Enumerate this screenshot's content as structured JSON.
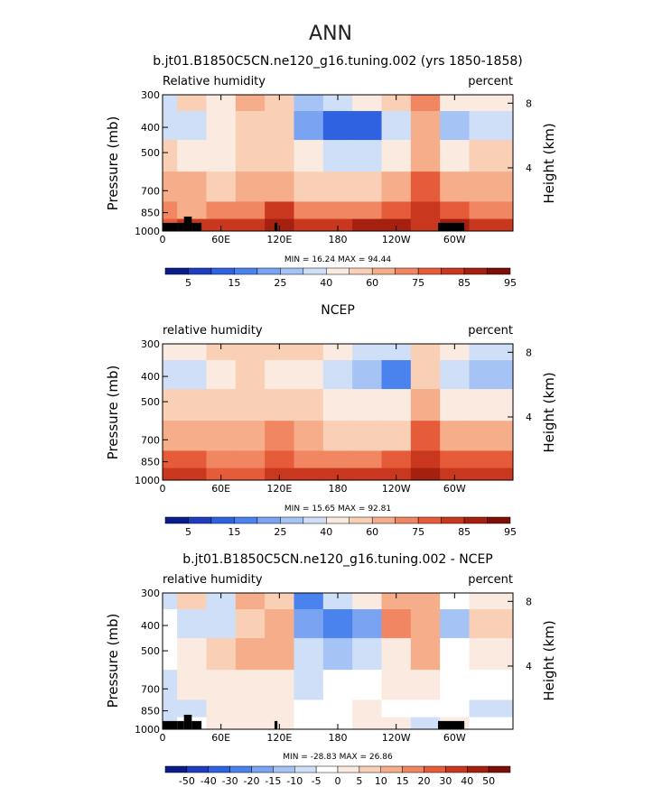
{
  "page_title": "ANN",
  "colors": {
    "abs_palette": [
      "#0b1d8a",
      "#1d3fbf",
      "#2e62e0",
      "#4a82ee",
      "#7aa3f2",
      "#a6c3f5",
      "#cfdff7",
      "#fbeadf",
      "#f9cfb5",
      "#f6ad8a",
      "#f18663",
      "#e65b3a",
      "#c9371e",
      "#a6200f",
      "#7e0f07"
    ],
    "diff_palette": [
      "#0b1d8a",
      "#1d3fbf",
      "#2e62e0",
      "#4a82ee",
      "#7aa3f2",
      "#a6c3f5",
      "#cfdff7",
      "#ffffff",
      "#fbeadf",
      "#f9cfb5",
      "#f6ad8a",
      "#f18663",
      "#e65b3a",
      "#c9371e",
      "#a6200f",
      "#7e0f07"
    ]
  },
  "chart_data": [
    {
      "type": "heatmap",
      "id": "model",
      "title": "b.jt01.B1850C5CN.ne120_g16.tuning.002 (yrs 1850-1858)",
      "left_label": "Relative humidity",
      "right_label": "percent",
      "ylabel": "Pressure (mb)",
      "ylabel_right": "Height (km)",
      "x_ticks": [
        {
          "v": 0,
          "l": "0"
        },
        {
          "v": 60,
          "l": "60E"
        },
        {
          "v": 120,
          "l": "120E"
        },
        {
          "v": 180,
          "l": "180"
        },
        {
          "v": 240,
          "l": "120W"
        },
        {
          "v": 300,
          "l": "60W"
        }
      ],
      "y_ticks": [
        {
          "v": 300,
          "l": "300"
        },
        {
          "v": 400,
          "l": "400"
        },
        {
          "v": 500,
          "l": "500"
        },
        {
          "v": 700,
          "l": "700"
        },
        {
          "v": 850,
          "l": "850"
        },
        {
          "v": 1000,
          "l": "1000"
        }
      ],
      "height_ticks": [
        {
          "v": 4,
          "l": "4"
        },
        {
          "v": 8,
          "l": "8"
        }
      ],
      "xlim": [
        0,
        360
      ],
      "ylim": [
        300,
        1000
      ],
      "stats": "MIN =   16.24   MAX =   94.44",
      "min": 16.24,
      "max": 94.44,
      "levels": [
        5,
        10,
        15,
        20,
        25,
        30,
        40,
        50,
        60,
        70,
        75,
        80,
        85,
        90,
        95
      ],
      "colorbar_labels": [
        "5",
        "15",
        "25",
        "40",
        "60",
        "75",
        "85",
        "95"
      ],
      "colorbar_label_index": [
        0,
        2,
        4,
        6,
        8,
        10,
        12,
        14
      ],
      "lon_samples": [
        0,
        30,
        60,
        90,
        120,
        150,
        180,
        210,
        240,
        270,
        300,
        330
      ],
      "p_samples": [
        300,
        400,
        500,
        700,
        850,
        950
      ],
      "values": [
        [
          40,
          55,
          50,
          70,
          60,
          30,
          40,
          45,
          55,
          75,
          45,
          45
        ],
        [
          40,
          35,
          45,
          60,
          55,
          25,
          15,
          15,
          40,
          70,
          30,
          40
        ],
        [
          55,
          50,
          45,
          60,
          55,
          45,
          40,
          40,
          50,
          70,
          50,
          55
        ],
        [
          65,
          65,
          55,
          65,
          70,
          60,
          60,
          60,
          65,
          80,
          65,
          65
        ],
        [
          75,
          70,
          75,
          75,
          85,
          75,
          75,
          75,
          80,
          85,
          80,
          75
        ],
        [
          80,
          85,
          85,
          85,
          90,
          85,
          85,
          90,
          90,
          85,
          90,
          85
        ]
      ],
      "topo_mask": [
        [
          0,
          15
        ],
        [
          15,
          22
        ],
        [
          22,
          30
        ],
        [
          30,
          40
        ],
        [
          115,
          118
        ],
        [
          283,
          310
        ]
      ]
    },
    {
      "type": "heatmap",
      "id": "ncep",
      "title": "NCEP",
      "left_label": "relative humidity",
      "right_label": "percent",
      "ylabel": "Pressure (mb)",
      "ylabel_right": "Height (km)",
      "x_ticks": [
        {
          "v": 0,
          "l": "0"
        },
        {
          "v": 60,
          "l": "60E"
        },
        {
          "v": 120,
          "l": "120E"
        },
        {
          "v": 180,
          "l": "180"
        },
        {
          "v": 240,
          "l": "120W"
        },
        {
          "v": 300,
          "l": "60W"
        }
      ],
      "y_ticks": [
        {
          "v": 300,
          "l": "300"
        },
        {
          "v": 400,
          "l": "400"
        },
        {
          "v": 500,
          "l": "500"
        },
        {
          "v": 700,
          "l": "700"
        },
        {
          "v": 850,
          "l": "850"
        },
        {
          "v": 1000,
          "l": "1000"
        }
      ],
      "height_ticks": [
        {
          "v": 4,
          "l": "4"
        },
        {
          "v": 8,
          "l": "8"
        }
      ],
      "xlim": [
        0,
        360
      ],
      "ylim": [
        300,
        1000
      ],
      "stats": "MIN =   15.65   MAX =   92.81",
      "min": 15.65,
      "max": 92.81,
      "levels": [
        5,
        10,
        15,
        20,
        25,
        30,
        40,
        50,
        60,
        70,
        75,
        80,
        85,
        90,
        95
      ],
      "colorbar_labels": [
        "5",
        "15",
        "25",
        "40",
        "60",
        "75",
        "85",
        "95"
      ],
      "colorbar_label_index": [
        0,
        2,
        4,
        6,
        8,
        10,
        12,
        14
      ],
      "lon_samples": [
        0,
        30,
        60,
        90,
        120,
        150,
        180,
        210,
        240,
        270,
        300,
        330
      ],
      "p_samples": [
        300,
        400,
        500,
        700,
        850,
        950
      ],
      "values": [
        [
          50,
          45,
          55,
          55,
          55,
          55,
          45,
          40,
          40,
          60,
          45,
          40
        ],
        [
          40,
          40,
          50,
          55,
          50,
          50,
          40,
          30,
          20,
          55,
          40,
          30
        ],
        [
          55,
          55,
          60,
          60,
          60,
          55,
          50,
          45,
          45,
          65,
          50,
          50
        ],
        [
          70,
          70,
          65,
          70,
          75,
          65,
          60,
          60,
          60,
          80,
          65,
          65
        ],
        [
          80,
          80,
          75,
          75,
          80,
          75,
          75,
          75,
          80,
          85,
          80,
          80
        ],
        [
          85,
          85,
          80,
          80,
          85,
          85,
          85,
          85,
          85,
          90,
          85,
          85
        ]
      ],
      "topo_mask": []
    },
    {
      "type": "heatmap",
      "id": "diff",
      "title": "b.jt01.B1850C5CN.ne120_g16.tuning.002 - NCEP",
      "left_label": "relative humidity",
      "right_label": "percent",
      "ylabel": "Pressure (mb)",
      "ylabel_right": "Height (km)",
      "x_ticks": [
        {
          "v": 0,
          "l": "0"
        },
        {
          "v": 60,
          "l": "60E"
        },
        {
          "v": 120,
          "l": "120E"
        },
        {
          "v": 180,
          "l": "180"
        },
        {
          "v": 240,
          "l": "120W"
        },
        {
          "v": 300,
          "l": "60W"
        }
      ],
      "y_ticks": [
        {
          "v": 300,
          "l": "300"
        },
        {
          "v": 400,
          "l": "400"
        },
        {
          "v": 500,
          "l": "500"
        },
        {
          "v": 700,
          "l": "700"
        },
        {
          "v": 850,
          "l": "850"
        },
        {
          "v": 1000,
          "l": "1000"
        }
      ],
      "height_ticks": [
        {
          "v": 4,
          "l": "4"
        },
        {
          "v": 8,
          "l": "8"
        }
      ],
      "xlim": [
        0,
        360
      ],
      "ylim": [
        300,
        1000
      ],
      "stats": "MIN =  -28.83   MAX =   26.86",
      "min": -28.83,
      "max": 26.86,
      "levels": [
        -50,
        -40,
        -30,
        -20,
        -15,
        -10,
        -5,
        0,
        5,
        10,
        15,
        20,
        30,
        40,
        50
      ],
      "colorbar_labels": [
        "-50",
        "-40",
        "-30",
        "-20",
        "-15",
        "-10",
        "-5",
        "0",
        "5",
        "10",
        "15",
        "20",
        "30",
        "40",
        "50"
      ],
      "colorbar_label_index": [
        0,
        1,
        2,
        3,
        4,
        5,
        6,
        7,
        8,
        9,
        10,
        11,
        12,
        13,
        14
      ],
      "lon_samples": [
        0,
        30,
        60,
        90,
        120,
        150,
        180,
        210,
        240,
        270,
        300,
        330
      ],
      "p_samples": [
        300,
        400,
        500,
        700,
        850,
        950
      ],
      "values": [
        [
          -5,
          10,
          -5,
          15,
          8,
          -20,
          -5,
          5,
          15,
          15,
          0,
          5
        ],
        [
          0,
          -5,
          -5,
          10,
          15,
          -15,
          -25,
          -15,
          20,
          15,
          -10,
          10
        ],
        [
          0,
          5,
          10,
          15,
          15,
          -5,
          -10,
          -5,
          5,
          15,
          0,
          5
        ],
        [
          -5,
          5,
          5,
          5,
          5,
          -5,
          0,
          0,
          5,
          5,
          0,
          0
        ],
        [
          -5,
          -5,
          5,
          5,
          5,
          0,
          0,
          5,
          0,
          0,
          0,
          -5
        ],
        [
          -5,
          0,
          5,
          5,
          5,
          0,
          0,
          5,
          5,
          -5,
          5,
          0
        ]
      ],
      "topo_mask": [
        [
          0,
          15
        ],
        [
          15,
          22
        ],
        [
          22,
          30
        ],
        [
          30,
          40
        ],
        [
          115,
          118
        ],
        [
          283,
          310
        ]
      ]
    }
  ]
}
